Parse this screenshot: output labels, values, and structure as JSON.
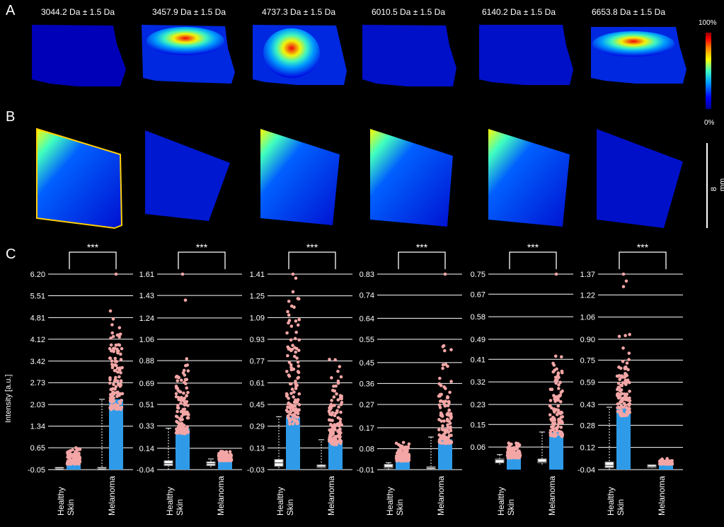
{
  "panels": {
    "a": "A",
    "b": "B",
    "c": "C"
  },
  "masses": [
    "3044.2 Da ± 1.5 Da",
    "3457.9 Da ± 1.5 Da",
    "4737.3 Da ± 1.5 Da",
    "6010.5 Da ± 1.5 Da",
    "6140.2 Da ± 1.5 Da",
    "6653.8 Da ± 1.5 Da"
  ],
  "colorbar": {
    "max_label": "100%",
    "min_label": "0%",
    "colors": [
      "#00008f",
      "#0000ff",
      "#00a0ff",
      "#40ffc0",
      "#ffff00",
      "#ff8000",
      "#ff0000",
      "#8f0000"
    ]
  },
  "scalebar": {
    "label": "8 mm"
  },
  "chart_data": [
    {
      "type": "box-scatter",
      "ylabel": "Intensity [a.u.]",
      "categories": [
        "Healthy Skin",
        "Melanoma"
      ],
      "significance": "***",
      "yticks": [
        -0.05,
        0.65,
        1.34,
        2.03,
        2.73,
        3.42,
        4.12,
        4.81,
        5.51,
        6.2
      ],
      "ylim": [
        -0.05,
        6.2
      ],
      "healthy_box": {
        "min": -0.05,
        "q1": -0.04,
        "median": -0.02,
        "q3": 0.0,
        "max": 0.02
      },
      "healthy_scatter_max": 0.75,
      "melanoma_box": {
        "min": -0.05,
        "q1": -0.04,
        "median": -0.02,
        "q3": 0.0,
        "max": 2.2
      },
      "melanoma_scatter_max": 5.35,
      "melanoma_dense_top": 2.2,
      "outliers": [
        6.2
      ]
    },
    {
      "type": "box-scatter",
      "ylabel": "",
      "categories": [
        "Healthy Skin",
        "Melanoma"
      ],
      "significance": "***",
      "yticks": [
        -0.04,
        0.14,
        0.33,
        0.51,
        0.69,
        0.88,
        1.06,
        1.24,
        1.43,
        1.61
      ],
      "ylim": [
        -0.04,
        1.61
      ],
      "healthy_box": {
        "min": -0.04,
        "q1": 0.0,
        "median": 0.01,
        "q3": 0.03,
        "max": 0.31
      },
      "healthy_scatter_max": 1.0,
      "healthy_dense_top": 0.31,
      "melanoma_box": {
        "min": -0.02,
        "q1": 0.0,
        "median": 0.01,
        "q3": 0.02,
        "max": 0.05
      },
      "melanoma_scatter_max": 0.13,
      "outliers": [
        1.61,
        1.39
      ]
    },
    {
      "type": "box-scatter",
      "ylabel": "",
      "categories": [
        "Healthy Skin",
        "Melanoma"
      ],
      "significance": "***",
      "yticks": [
        -0.03,
        0.13,
        0.29,
        0.45,
        0.61,
        0.77,
        0.93,
        1.09,
        1.25,
        1.41
      ],
      "ylim": [
        -0.03,
        1.41
      ],
      "healthy_box": {
        "min": -0.02,
        "q1": 0.0,
        "median": 0.02,
        "q3": 0.04,
        "max": 0.36
      },
      "healthy_scatter_max": 1.4,
      "healthy_dense_top": 0.36,
      "melanoma_box": {
        "min": -0.02,
        "q1": -0.01,
        "median": -0.01,
        "q3": 0.0,
        "max": 0.19
      },
      "melanoma_scatter_max": 0.84,
      "melanoma_dense_top": 0.18,
      "outliers": [
        1.41,
        1.38,
        1.28
      ]
    },
    {
      "type": "box-scatter",
      "ylabel": "",
      "categories": [
        "Healthy Skin",
        "Melanoma"
      ],
      "significance": "***",
      "yticks": [
        -0.01,
        0.08,
        0.17,
        0.27,
        0.36,
        0.45,
        0.55,
        0.64,
        0.74,
        0.83
      ],
      "ylim": [
        -0.01,
        0.83
      ],
      "healthy_box": {
        "min": -0.01,
        "q1": 0.0,
        "median": 0.0,
        "q3": 0.01,
        "max": 0.02
      },
      "healthy_scatter_max": 0.12,
      "melanoma_box": {
        "min": -0.01,
        "q1": 0.0,
        "median": 0.0,
        "q3": 0.0,
        "max": 0.13
      },
      "melanoma_scatter_max": 0.55,
      "melanoma_dense_top": 0.12,
      "outliers": [
        0.83
      ]
    },
    {
      "type": "box-scatter",
      "ylabel": "",
      "categories": [
        "Healthy Skin",
        "Melanoma"
      ],
      "significance": "***",
      "yticks": [
        0.06,
        0.15,
        0.23,
        0.32,
        0.41,
        0.49,
        0.58,
        0.67,
        0.75
      ],
      "ylim": [
        -0.03,
        0.75
      ],
      "healthy_box": {
        "min": -0.01,
        "q1": 0.0,
        "median": 0.01,
        "q3": 0.01,
        "max": 0.03
      },
      "healthy_scatter_max": 0.1,
      "healthy_dense_top": 0.02,
      "melanoma_box": {
        "min": -0.01,
        "q1": 0.0,
        "median": 0.0,
        "q3": 0.01,
        "max": 0.12
      },
      "melanoma_scatter_max": 0.46,
      "melanoma_dense_top": 0.12,
      "outliers": [
        0.75
      ]
    },
    {
      "type": "box-scatter",
      "ylabel": "",
      "categories": [
        "Healthy Skin",
        "Melanoma"
      ],
      "significance": "***",
      "yticks": [
        -0.04,
        0.12,
        0.28,
        0.43,
        0.59,
        0.75,
        0.9,
        1.06,
        1.22,
        1.37
      ],
      "ylim": [
        -0.04,
        1.37
      ],
      "healthy_box": {
        "min": -0.04,
        "q1": -0.02,
        "median": -0.01,
        "q3": 0.01,
        "max": 0.41
      },
      "healthy_scatter_max": 1.05,
      "healthy_dense_top": 0.41,
      "melanoma_box": {
        "min": -0.03,
        "q1": -0.02,
        "median": -0.02,
        "q3": -0.01,
        "max": -0.01
      },
      "melanoma_scatter_max": 0.04,
      "outliers": [
        1.37,
        1.32,
        1.28
      ]
    }
  ]
}
